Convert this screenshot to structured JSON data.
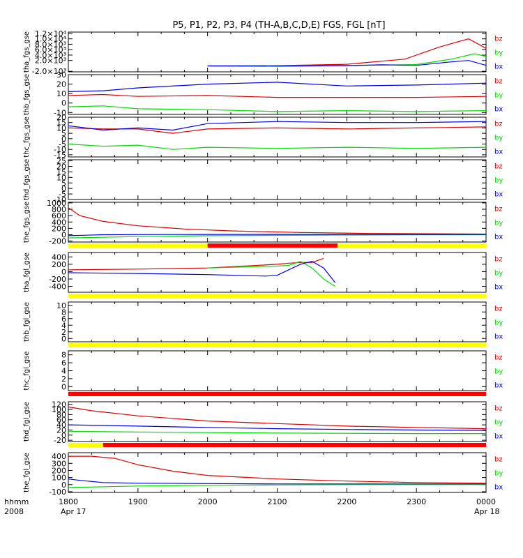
{
  "figure": {
    "title": "P5, P1, P2, P3, P4 (TH-A,B,C,D,E) FGS, FGL [nT]",
    "time_label": "hhmm",
    "year_label": "2008",
    "x_ticks": [
      "1800",
      "1900",
      "2000",
      "2100",
      "2200",
      "2300",
      "0000"
    ],
    "date_left": "Apr 17",
    "date_right": "Apr 18",
    "colors": {
      "bx": "#0000ee",
      "by": "#00dd00",
      "bz": "#dd0000",
      "flag_yellow": "#ffff00",
      "flag_red": "#ff0000",
      "axis": "#000000"
    }
  },
  "chart_data": [
    {
      "type": "line",
      "ylabel": "tha_fgs_gse",
      "ylim": [
        -2200,
        12500
      ],
      "y_ticks": [
        "-2.0×10³",
        "2.0×10³",
        "4.0×10³",
        "6.0×10³",
        "8.0×10³",
        "1.0×10⁴",
        "1.2×10⁴"
      ],
      "y_tick_values": [
        -2000,
        2000,
        4000,
        6000,
        8000,
        10000,
        12000
      ],
      "x": [
        0,
        300,
        330,
        345,
        360
      ],
      "series": [
        {
          "name": "bz",
          "color": "#dd0000",
          "x": [
            120,
            180,
            240,
            290,
            320,
            345,
            360
          ],
          "values": [
            0,
            100,
            600,
            2500,
            7000,
            10000,
            6500
          ]
        },
        {
          "name": "by",
          "color": "#00dd00",
          "x": [
            120,
            180,
            240,
            270,
            300,
            330,
            350,
            360
          ],
          "values": [
            0,
            0,
            200,
            300,
            500,
            2500,
            4500,
            3500
          ]
        },
        {
          "name": "bx",
          "color": "#0000ee",
          "x": [
            120,
            180,
            240,
            270,
            300,
            330,
            345,
            360
          ],
          "values": [
            0,
            -100,
            100,
            400,
            200,
            1500,
            2000,
            200
          ]
        }
      ]
    },
    {
      "type": "line",
      "ylabel": "thb_fgs_gse",
      "ylim": [
        -12,
        30
      ],
      "y_ticks": [
        "-10",
        "0",
        "10",
        "20",
        "30"
      ],
      "y_tick_values": [
        -10,
        0,
        10,
        20,
        30
      ],
      "series": [
        {
          "name": "bz",
          "color": "#dd0000",
          "x": [
            0,
            30,
            60,
            120,
            180,
            240,
            300,
            360
          ],
          "values": [
            8,
            9,
            7,
            8,
            6,
            6,
            6,
            7
          ]
        },
        {
          "name": "by",
          "color": "#00dd00",
          "x": [
            0,
            30,
            60,
            120,
            180,
            240,
            300,
            360
          ],
          "values": [
            -4,
            -3,
            -6,
            -7,
            -9,
            -8,
            -9,
            -8
          ]
        },
        {
          "name": "bx",
          "color": "#0000ee",
          "x": [
            0,
            30,
            60,
            120,
            180,
            240,
            300,
            360
          ],
          "values": [
            12,
            13,
            16,
            20,
            22,
            18,
            19,
            21
          ]
        }
      ]
    },
    {
      "type": "line",
      "ylabel": "thc_fgs_gse",
      "ylim": [
        -17,
        20
      ],
      "y_ticks": [
        "-15",
        "-10",
        "-5",
        "0",
        "5",
        "10",
        "15",
        "20"
      ],
      "y_tick_values": [
        -15,
        -10,
        -5,
        0,
        5,
        10,
        15,
        20
      ],
      "series": [
        {
          "name": "bz",
          "color": "#dd0000",
          "x": [
            0,
            30,
            60,
            90,
            120,
            180,
            240,
            300,
            360
          ],
          "values": [
            10,
            9,
            9,
            5,
            9,
            10,
            9,
            10,
            11
          ]
        },
        {
          "name": "by",
          "color": "#00dd00",
          "x": [
            0,
            30,
            60,
            90,
            120,
            180,
            240,
            300,
            360
          ],
          "values": [
            -5,
            -7,
            -6,
            -10,
            -8,
            -9,
            -8,
            -9,
            -8
          ]
        },
        {
          "name": "bx",
          "color": "#0000ee",
          "x": [
            0,
            30,
            60,
            90,
            120,
            180,
            240,
            300,
            360
          ],
          "values": [
            12,
            8,
            10,
            8,
            14,
            16,
            15,
            15,
            16
          ]
        }
      ]
    },
    {
      "type": "line",
      "ylabel": "thd_fgs_gse",
      "ylim": [
        -10,
        26
      ],
      "y_ticks": [
        "-10",
        "-5",
        "0",
        "5",
        "10",
        "15",
        "20",
        "25"
      ],
      "y_tick_values": [
        -10,
        -5,
        0,
        5,
        10,
        15,
        20,
        25
      ],
      "series": []
    },
    {
      "type": "line",
      "ylabel": "the_fgs_gse",
      "ylim": [
        -230,
        1020
      ],
      "y_ticks": [
        "-200",
        "0",
        "200",
        "400",
        "600",
        "800",
        "1000"
      ],
      "y_tick_values": [
        -200,
        0,
        200,
        400,
        600,
        800,
        1000
      ],
      "series": [
        {
          "name": "bz",
          "color": "#dd0000",
          "x": [
            0,
            10,
            30,
            60,
            100,
            140,
            200,
            260,
            360
          ],
          "values": [
            850,
            600,
            420,
            280,
            180,
            120,
            70,
            40,
            20
          ]
        },
        {
          "name": "by",
          "color": "#00dd00",
          "x": [
            0,
            60,
            120,
            180,
            240,
            300,
            360
          ],
          "values": [
            -100,
            -60,
            -30,
            -20,
            -10,
            -5,
            0
          ]
        },
        {
          "name": "bx",
          "color": "#0000ee",
          "x": [
            0,
            30,
            60,
            120,
            180,
            240,
            300,
            360
          ],
          "values": [
            -30,
            0,
            5,
            10,
            10,
            12,
            12,
            12
          ]
        }
      ]
    },
    {
      "type": "line",
      "ylabel": "tha_fgl_gse",
      "ylim": [
        -560,
        520
      ],
      "y_ticks": [
        "-400",
        "-200",
        "0",
        "200",
        "400"
      ],
      "y_tick_values": [
        -400,
        -200,
        0,
        200,
        400
      ],
      "series": [
        {
          "name": "bz",
          "color": "#dd0000",
          "x": [
            0,
            60,
            120,
            180,
            190,
            200,
            210,
            220
          ],
          "values": [
            50,
            70,
            100,
            200,
            230,
            250,
            250,
            360
          ]
        },
        {
          "name": "by",
          "color": "#00dd00",
          "x": [
            120,
            180,
            190,
            200,
            210,
            220,
            230
          ],
          "values": [
            100,
            150,
            170,
            280,
            100,
            -200,
            -400
          ]
        },
        {
          "name": "bx",
          "color": "#0000ee",
          "x": [
            0,
            60,
            120,
            170,
            180,
            190,
            200,
            210,
            220,
            230
          ],
          "values": [
            -30,
            -50,
            -80,
            -120,
            -100,
            50,
            200,
            280,
            100,
            -300
          ]
        }
      ]
    },
    {
      "type": "line",
      "ylabel": "thb_fgl_gse",
      "ylim": [
        -1,
        11
      ],
      "y_ticks": [
        "0",
        "2",
        "4",
        "6",
        "8",
        "10"
      ],
      "y_tick_values": [
        0,
        2,
        4,
        6,
        8,
        10
      ],
      "series": []
    },
    {
      "type": "line",
      "ylabel": "thc_fgl_gse",
      "ylim": [
        -1,
        9
      ],
      "y_ticks": [
        "0",
        "2",
        "4",
        "6",
        "8"
      ],
      "y_tick_values": [
        0,
        2,
        4,
        6,
        8
      ],
      "series": []
    },
    {
      "type": "line",
      "ylabel": "thd_fgl_gse",
      "ylim": [
        -25,
        130
      ],
      "y_ticks": [
        "-20",
        "0",
        "20",
        "40",
        "60",
        "80",
        "100",
        "120"
      ],
      "y_tick_values": [
        -20,
        0,
        20,
        40,
        60,
        80,
        100,
        120
      ],
      "series": [
        {
          "name": "bz",
          "color": "#dd0000",
          "x": [
            0,
            20,
            60,
            120,
            180,
            240,
            300,
            360
          ],
          "values": [
            110,
            95,
            75,
            55,
            45,
            35,
            30,
            25
          ]
        },
        {
          "name": "by",
          "color": "#00dd00",
          "x": [
            0,
            60,
            120,
            180,
            240,
            300,
            360
          ],
          "values": [
            15,
            12,
            10,
            8,
            7,
            6,
            6
          ]
        },
        {
          "name": "bx",
          "color": "#0000ee",
          "x": [
            0,
            60,
            120,
            180,
            240,
            300,
            360
          ],
          "values": [
            40,
            35,
            30,
            25,
            22,
            20,
            18
          ]
        }
      ]
    },
    {
      "type": "line",
      "ylabel": "the_fgl_gse",
      "ylim": [
        -110,
        450
      ],
      "y_ticks": [
        "-100",
        "0",
        "100",
        "200",
        "300",
        "400"
      ],
      "y_tick_values": [
        -100,
        0,
        100,
        200,
        300,
        400
      ],
      "series": [
        {
          "name": "bz",
          "color": "#dd0000",
          "x": [
            0,
            20,
            40,
            60,
            90,
            120,
            180,
            240,
            300,
            360
          ],
          "values": [
            400,
            400,
            370,
            280,
            190,
            130,
            80,
            50,
            30,
            20
          ]
        },
        {
          "name": "by",
          "color": "#00dd00",
          "x": [
            0,
            60,
            120,
            180,
            240,
            300,
            360
          ],
          "values": [
            -40,
            -20,
            -10,
            -5,
            0,
            0,
            0
          ]
        },
        {
          "name": "bx",
          "color": "#0000ee",
          "x": [
            0,
            10,
            30,
            60,
            120,
            180,
            240,
            300,
            360
          ],
          "values": [
            80,
            60,
            30,
            20,
            15,
            10,
            10,
            10,
            10
          ]
        }
      ]
    }
  ],
  "flag_bars": [
    {
      "after_panel": 4,
      "segments": [
        {
          "x0": 0,
          "x1": 120,
          "color": "#ffff00"
        },
        {
          "x0": 120,
          "x1": 232,
          "color": "#ff0000"
        },
        {
          "x0": 232,
          "x1": 360,
          "color": "#ffff00"
        }
      ]
    },
    {
      "after_panel": 5,
      "segments": [
        {
          "x0": 0,
          "x1": 360,
          "color": "#ffff00"
        }
      ]
    },
    {
      "after_panel": 6,
      "segments": [
        {
          "x0": 0,
          "x1": 360,
          "color": "#ffff00"
        }
      ]
    },
    {
      "after_panel": 7,
      "segments": [
        {
          "x0": 0,
          "x1": 360,
          "color": "#ff0000"
        }
      ]
    },
    {
      "after_panel": 8,
      "segments": [
        {
          "x0": 0,
          "x1": 30,
          "color": "#ffff00"
        },
        {
          "x0": 30,
          "x1": 360,
          "color": "#ff0000"
        }
      ]
    }
  ]
}
